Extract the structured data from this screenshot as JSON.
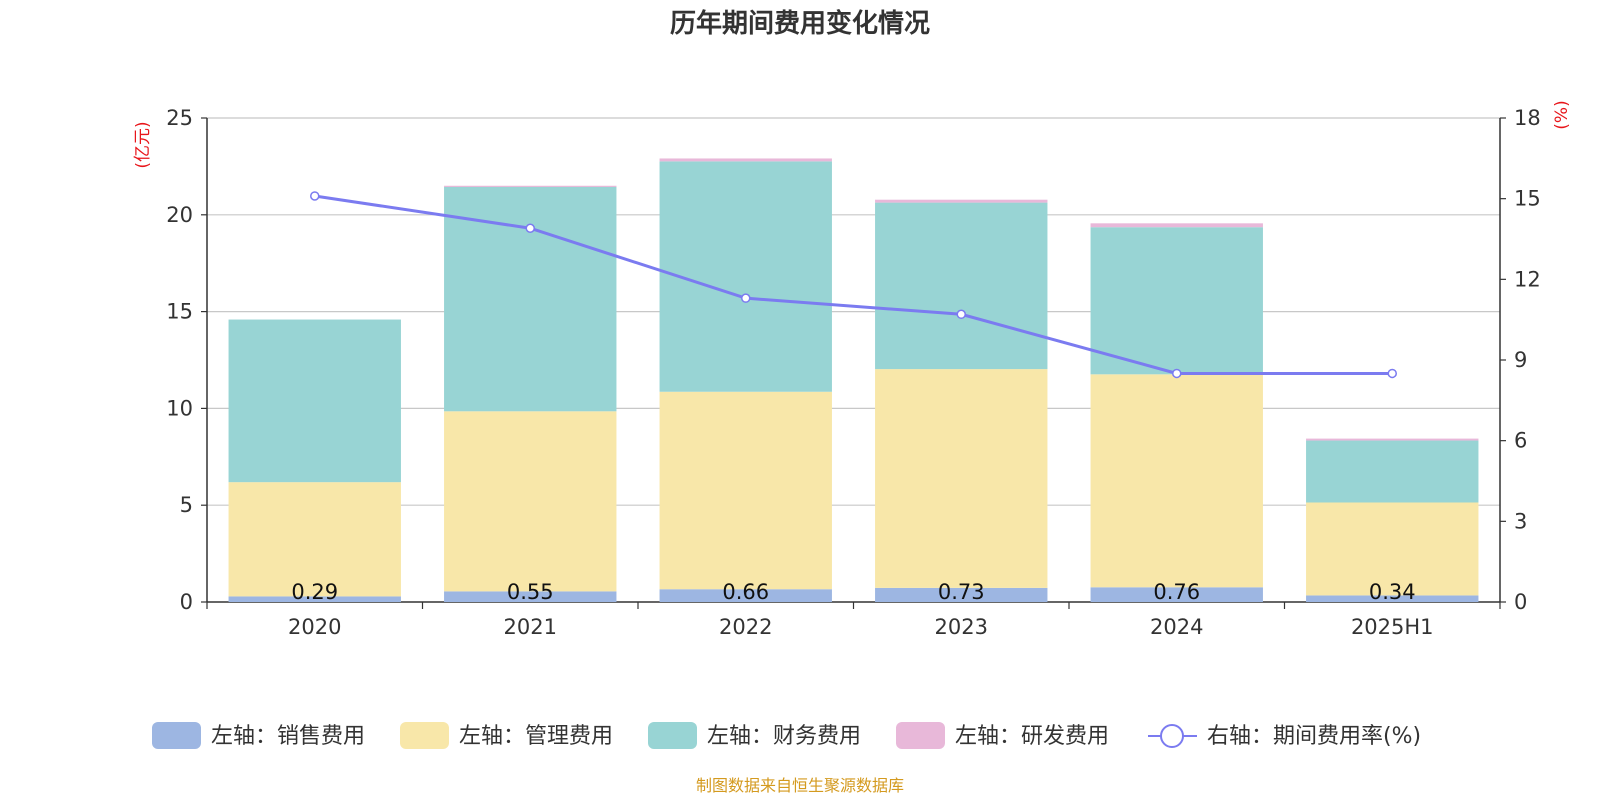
{
  "chart_data": {
    "type": "bar",
    "title": "历年期间费用变化情况",
    "categories": [
      "2020",
      "2021",
      "2022",
      "2023",
      "2024",
      "2025H1"
    ],
    "stacked": true,
    "left_axis": {
      "unit": "(亿元)",
      "ylim": [
        0,
        25
      ],
      "ticks": [
        "0",
        "5",
        "10",
        "15",
        "20",
        "25"
      ]
    },
    "right_axis": {
      "unit": "(%)",
      "ylim": [
        0,
        18
      ],
      "ticks": [
        "0",
        "3",
        "6",
        "9",
        "12",
        "15",
        "18"
      ]
    },
    "series": [
      {
        "name": "左轴：销售费用",
        "type": "bar",
        "axis": "left",
        "color": "#9db6e2",
        "values": [
          0.29,
          0.55,
          0.66,
          0.73,
          0.76,
          0.34
        ],
        "labels": [
          "0.29",
          "0.55",
          "0.66",
          "0.73",
          "0.76",
          "0.34"
        ]
      },
      {
        "name": "左轴：管理费用",
        "type": "bar",
        "axis": "left",
        "color": "#f8e7a9",
        "values": [
          5.9,
          9.3,
          10.2,
          11.3,
          11.0,
          4.8
        ]
      },
      {
        "name": "左轴：财务费用",
        "type": "bar",
        "axis": "left",
        "color": "#98d4d4",
        "values": [
          8.4,
          11.6,
          11.9,
          8.6,
          7.6,
          3.2
        ]
      },
      {
        "name": "左轴：研发费用",
        "type": "bar",
        "axis": "left",
        "color": "#e8b8d9",
        "values": [
          0.0,
          0.05,
          0.15,
          0.15,
          0.2,
          0.1
        ]
      },
      {
        "name": "右轴：期间费用率(%)",
        "type": "line",
        "axis": "right",
        "color": "#7b7bf0",
        "values": [
          15.1,
          13.9,
          11.3,
          10.7,
          8.5,
          8.5
        ]
      }
    ],
    "grid": true,
    "legend_position": "bottom"
  },
  "source_note": "制图数据来自恒生聚源数据库"
}
